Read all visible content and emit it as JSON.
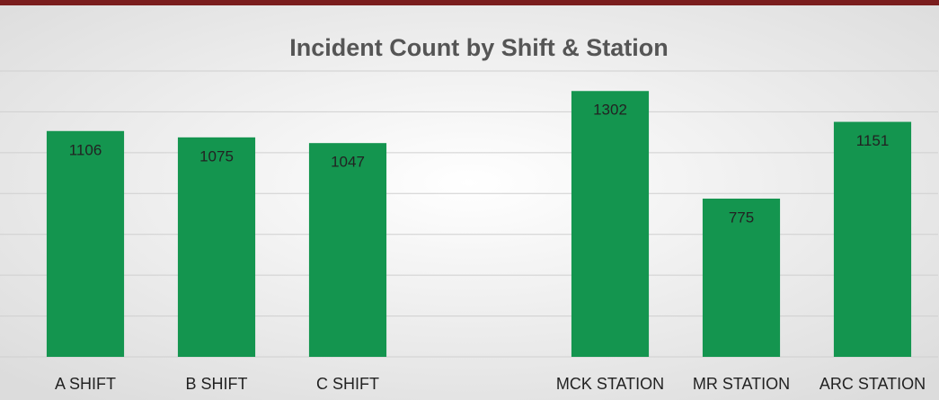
{
  "chart_data": {
    "type": "bar",
    "title": "Incident Count by Shift & Station",
    "categories": [
      "A SHIFT",
      "B SHIFT",
      "C SHIFT",
      null,
      "MCK STATION",
      "MR STATION",
      "ARC STATION"
    ],
    "values": [
      1106,
      1075,
      1047,
      null,
      1302,
      775,
      1151
    ],
    "color": "#14954f",
    "ylim": [
      0,
      1400
    ],
    "yticks": [
      0,
      200,
      400,
      600,
      800,
      1000,
      1200,
      1400
    ],
    "grid": true
  }
}
